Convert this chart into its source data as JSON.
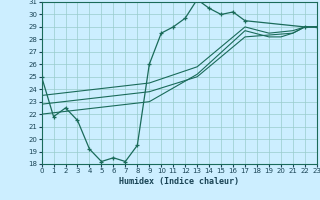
{
  "xlabel": "Humidex (Indice chaleur)",
  "background_color": "#cceeff",
  "grid_color": "#99cccc",
  "line_color": "#1a6b5a",
  "xlim": [
    0,
    23
  ],
  "ylim": [
    18,
    31
  ],
  "xticks": [
    0,
    1,
    2,
    3,
    4,
    5,
    6,
    7,
    8,
    9,
    10,
    11,
    12,
    13,
    14,
    15,
    16,
    17,
    18,
    19,
    20,
    21,
    22,
    23
  ],
  "yticks": [
    18,
    19,
    20,
    21,
    22,
    23,
    24,
    25,
    26,
    27,
    28,
    29,
    30,
    31
  ],
  "curve1_x": [
    0,
    1,
    2,
    3,
    4,
    5,
    6,
    7,
    8,
    9,
    10,
    11,
    12,
    13,
    14,
    15,
    16,
    17,
    22,
    23
  ],
  "curve1_y": [
    25.0,
    21.8,
    22.5,
    21.5,
    19.2,
    18.2,
    18.5,
    18.2,
    19.5,
    26.0,
    28.5,
    29.0,
    29.7,
    31.2,
    30.5,
    30.0,
    30.2,
    29.5,
    29.0,
    29.0
  ],
  "curve2_x": [
    0,
    9,
    13,
    17,
    19,
    20,
    21,
    22,
    23
  ],
  "curve2_y": [
    22.0,
    23.0,
    25.2,
    28.7,
    28.2,
    28.2,
    28.5,
    29.0,
    29.0
  ],
  "curve3_x": [
    0,
    9,
    13,
    17,
    21,
    22,
    23
  ],
  "curve3_y": [
    22.8,
    23.8,
    25.0,
    28.2,
    28.5,
    29.0,
    29.0
  ],
  "curve4_x": [
    0,
    9,
    13,
    17,
    19,
    21,
    22,
    23
  ],
  "curve4_y": [
    23.5,
    24.5,
    25.8,
    29.0,
    28.5,
    28.7,
    29.0,
    29.0
  ]
}
